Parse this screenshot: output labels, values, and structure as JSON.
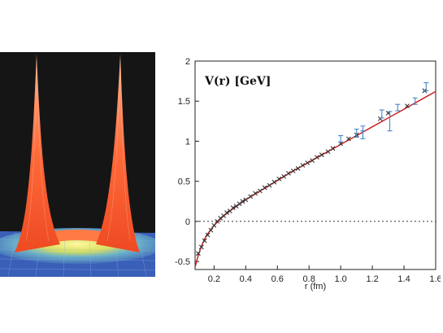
{
  "colors": {
    "fit_line": "#cc2222",
    "points": "#333333",
    "error_bars": "#4a86c8",
    "zero_line": "#333333",
    "surface_peak": "#ff6a3a",
    "surface_base": "#3a5fb8",
    "panel_background": "#151515"
  },
  "surface_image": {
    "description_icon": "density-surface-image",
    "peak_count": 2
  },
  "chart_data": {
    "type": "scatter",
    "title": "V(r) [GeV]",
    "xlabel": "r (fm)",
    "ylabel": "",
    "xlim": [
      0.08,
      1.6
    ],
    "ylim": [
      -0.6,
      2.0
    ],
    "x_ticks": [
      0.2,
      0.4,
      0.6,
      0.8,
      1.0,
      1.2,
      1.4,
      1.6
    ],
    "x_tick_labels": [
      "0.2",
      "0.4",
      "0.6",
      "0.8",
      "1.0",
      "1.2",
      "1.4",
      "1.6"
    ],
    "y_ticks": [
      -0.5,
      0,
      0.5,
      1,
      1.5,
      2
    ],
    "y_tick_labels": [
      "-0.5",
      "0",
      "0.5",
      "1",
      "1.5",
      "2"
    ],
    "grid": false,
    "zero_line": true,
    "fit_curve": {
      "x": [
        0.08,
        0.1,
        0.12,
        0.15,
        0.2,
        0.25,
        0.3,
        0.35,
        0.4,
        0.5,
        0.6,
        0.7,
        0.8,
        0.9,
        1.0,
        1.1,
        1.2,
        1.3,
        1.4,
        1.5,
        1.6
      ],
      "y": [
        -0.57,
        -0.42,
        -0.31,
        -0.18,
        -0.05,
        0.05,
        0.13,
        0.2,
        0.27,
        0.39,
        0.51,
        0.63,
        0.74,
        0.85,
        0.96,
        1.07,
        1.18,
        1.29,
        1.4,
        1.51,
        1.62
      ]
    },
    "series": [
      {
        "x": [
          0.1,
          0.12,
          0.14,
          0.16,
          0.18,
          0.2,
          0.22,
          0.24,
          0.26,
          0.28,
          0.3,
          0.32,
          0.34,
          0.36,
          0.38,
          0.4,
          0.43,
          0.46,
          0.49,
          0.52,
          0.55,
          0.58,
          0.61,
          0.64,
          0.67,
          0.7,
          0.73,
          0.76,
          0.79,
          0.82,
          0.85,
          0.88,
          0.92,
          0.95,
          1.0,
          1.05,
          1.1,
          1.25,
          1.3,
          1.42,
          1.53
        ],
        "y": [
          -0.4,
          -0.32,
          -0.24,
          -0.17,
          -0.11,
          -0.05,
          0.0,
          0.04,
          0.07,
          0.11,
          0.13,
          0.17,
          0.19,
          0.22,
          0.25,
          0.27,
          0.31,
          0.35,
          0.38,
          0.42,
          0.45,
          0.49,
          0.53,
          0.56,
          0.6,
          0.63,
          0.66,
          0.7,
          0.73,
          0.76,
          0.8,
          0.83,
          0.87,
          0.91,
          0.97,
          1.03,
          1.08,
          1.28,
          1.35,
          1.44,
          1.63
        ]
      }
    ],
    "error_points": [
      {
        "x": 1.0,
        "y": 1.03,
        "err": 0.04
      },
      {
        "x": 1.1,
        "y": 1.1,
        "err": 0.05
      },
      {
        "x": 1.14,
        "y": 1.11,
        "err": 0.08
      },
      {
        "x": 1.14,
        "y": 1.08,
        "err": 0.05
      },
      {
        "x": 1.26,
        "y": 1.34,
        "err": 0.05
      },
      {
        "x": 1.31,
        "y": 1.25,
        "err": 0.12
      },
      {
        "x": 1.36,
        "y": 1.42,
        "err": 0.04
      },
      {
        "x": 1.47,
        "y": 1.5,
        "err": 0.04
      },
      {
        "x": 1.54,
        "y": 1.68,
        "err": 0.05
      }
    ]
  }
}
